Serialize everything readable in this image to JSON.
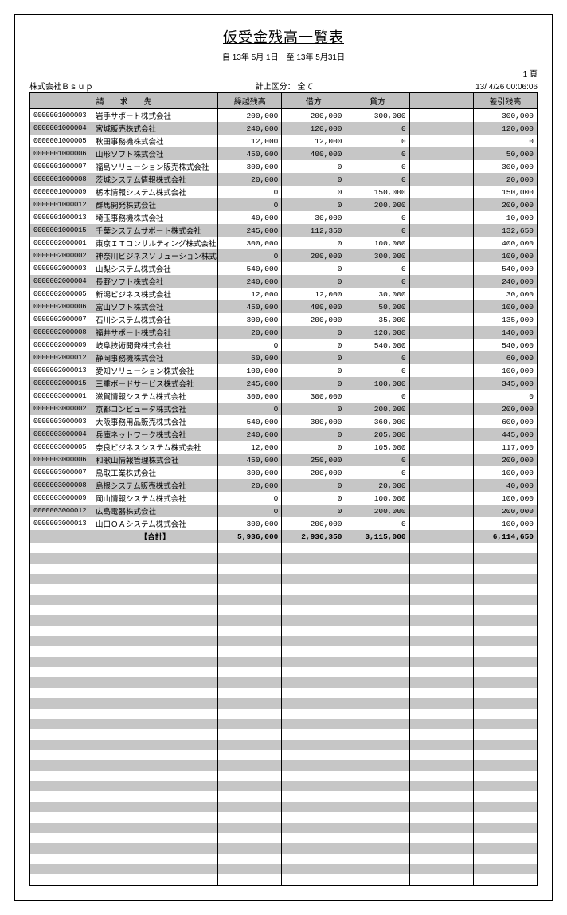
{
  "title": "仮受金残高一覧表",
  "period": "自 13年 5月 1日　至 13年 5月31日",
  "company": "株式会社Ｂｓｕｐ",
  "page_no": "1 頁",
  "filter_label": "計上区分： 全て",
  "timestamp": "13/ 4/26 00:06:06",
  "columns": {
    "c1": "請　　求　　先",
    "c2": "繰越残高",
    "c3": "借方",
    "c4": "貸方",
    "c5": "",
    "c6": "差引残高"
  },
  "rows": [
    {
      "code": "0000001000003",
      "name": "岩手サポート株式会社",
      "a": "200,000",
      "b": "200,000",
      "c": "300,000",
      "d": "300,000"
    },
    {
      "code": "0000001000004",
      "name": "宮城販売株式会社",
      "a": "240,000",
      "b": "120,000",
      "c": "0",
      "d": "120,000"
    },
    {
      "code": "0000001000005",
      "name": "秋田事務機株式会社",
      "a": "12,000",
      "b": "12,000",
      "c": "0",
      "d": "0"
    },
    {
      "code": "0000001000006",
      "name": "山形ソフト株式会社",
      "a": "450,000",
      "b": "400,000",
      "c": "0",
      "d": "50,000"
    },
    {
      "code": "0000001000007",
      "name": "福島ソリューション販売株式会社",
      "a": "300,000",
      "b": "0",
      "c": "0",
      "d": "300,000"
    },
    {
      "code": "0000001000008",
      "name": "茨城システム情報株式会社",
      "a": "20,000",
      "b": "0",
      "c": "0",
      "d": "20,000"
    },
    {
      "code": "0000001000009",
      "name": "栃木情報システム株式会社",
      "a": "0",
      "b": "0",
      "c": "150,000",
      "d": "150,000"
    },
    {
      "code": "0000001000012",
      "name": "群馬開発株式会社",
      "a": "0",
      "b": "0",
      "c": "200,000",
      "d": "200,000"
    },
    {
      "code": "0000001000013",
      "name": "埼玉事務機株式会社",
      "a": "40,000",
      "b": "30,000",
      "c": "0",
      "d": "10,000"
    },
    {
      "code": "0000001000015",
      "name": "千葉システムサポート株式会社",
      "a": "245,000",
      "b": "112,350",
      "c": "0",
      "d": "132,650"
    },
    {
      "code": "0000002000001",
      "name": "東京ＩＴコンサルティング株式会社",
      "a": "300,000",
      "b": "0",
      "c": "100,000",
      "d": "400,000"
    },
    {
      "code": "0000002000002",
      "name": "神奈川ビジネスソリューション株式会社",
      "a": "0",
      "b": "200,000",
      "c": "300,000",
      "d": "100,000"
    },
    {
      "code": "0000002000003",
      "name": "山梨システム株式会社",
      "a": "540,000",
      "b": "0",
      "c": "0",
      "d": "540,000"
    },
    {
      "code": "0000002000004",
      "name": "長野ソフト株式会社",
      "a": "240,000",
      "b": "0",
      "c": "0",
      "d": "240,000"
    },
    {
      "code": "0000002000005",
      "name": "新潟ビジネス株式会社",
      "a": "12,000",
      "b": "12,000",
      "c": "30,000",
      "d": "30,000"
    },
    {
      "code": "0000002000006",
      "name": "富山ソフト株式会社",
      "a": "450,000",
      "b": "400,000",
      "c": "50,000",
      "d": "100,000"
    },
    {
      "code": "0000002000007",
      "name": "石川システム株式会社",
      "a": "300,000",
      "b": "200,000",
      "c": "35,000",
      "d": "135,000"
    },
    {
      "code": "0000002000008",
      "name": "福井サポート株式会社",
      "a": "20,000",
      "b": "0",
      "c": "120,000",
      "d": "140,000"
    },
    {
      "code": "0000002000009",
      "name": "岐阜技術開発株式会社",
      "a": "0",
      "b": "0",
      "c": "540,000",
      "d": "540,000"
    },
    {
      "code": "0000002000012",
      "name": "静岡事務機株式会社",
      "a": "60,000",
      "b": "0",
      "c": "0",
      "d": "60,000"
    },
    {
      "code": "0000002000013",
      "name": "愛知ソリューション株式会社",
      "a": "100,000",
      "b": "0",
      "c": "0",
      "d": "100,000"
    },
    {
      "code": "0000002000015",
      "name": "三重ボードサービス株式会社",
      "a": "245,000",
      "b": "0",
      "c": "100,000",
      "d": "345,000"
    },
    {
      "code": "0000003000001",
      "name": "滋賀情報システム株式会社",
      "a": "300,000",
      "b": "300,000",
      "c": "0",
      "d": "0"
    },
    {
      "code": "0000003000002",
      "name": "京都コンピュータ株式会社",
      "a": "0",
      "b": "0",
      "c": "200,000",
      "d": "200,000"
    },
    {
      "code": "0000003000003",
      "name": "大阪事務用品販売株式会社",
      "a": "540,000",
      "b": "300,000",
      "c": "360,000",
      "d": "600,000"
    },
    {
      "code": "0000003000004",
      "name": "兵庫ネットワーク株式会社",
      "a": "240,000",
      "b": "0",
      "c": "205,000",
      "d": "445,000"
    },
    {
      "code": "0000003000005",
      "name": "奈良ビジネスシステム株式会社",
      "a": "12,000",
      "b": "0",
      "c": "105,000",
      "d": "117,000"
    },
    {
      "code": "0000003000006",
      "name": "和歌山情報管理株式会社",
      "a": "450,000",
      "b": "250,000",
      "c": "0",
      "d": "200,000"
    },
    {
      "code": "0000003000007",
      "name": "鳥取工業株式会社",
      "a": "300,000",
      "b": "200,000",
      "c": "0",
      "d": "100,000"
    },
    {
      "code": "0000003000008",
      "name": "島根システム販売株式会社",
      "a": "20,000",
      "b": "0",
      "c": "20,000",
      "d": "40,000"
    },
    {
      "code": "0000003000009",
      "name": "岡山情報システム株式会社",
      "a": "0",
      "b": "0",
      "c": "100,000",
      "d": "100,000"
    },
    {
      "code": "0000003000012",
      "name": "広島電器株式会社",
      "a": "0",
      "b": "0",
      "c": "200,000",
      "d": "200,000"
    },
    {
      "code": "0000003000013",
      "name": "山口ＯＡシステム株式会社",
      "a": "300,000",
      "b": "200,000",
      "c": "0",
      "d": "100,000"
    }
  ],
  "total": {
    "label": "【合計】",
    "a": "5,936,000",
    "b": "2,936,350",
    "c": "3,115,000",
    "d": "6,114,650"
  },
  "empty_rows": 33,
  "colors": {
    "header_bg": "#c0c0c0",
    "stripe_bg": "#c6c6c6",
    "border": "#000000",
    "background": "#ffffff",
    "text": "#000000"
  },
  "fonts": {
    "title_size": 18,
    "body_size": 10,
    "cell_size": 9.5
  }
}
